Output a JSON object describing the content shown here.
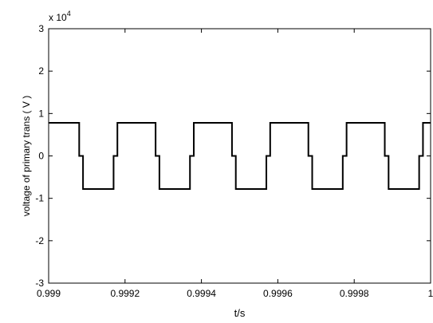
{
  "chart_data": {
    "type": "line",
    "title": "",
    "xlabel": "t/s",
    "ylabel": "voltage of primary trans ( V )",
    "y_exponent_label": {
      "base": "x 10",
      "power": "4"
    },
    "xlim": [
      0.999,
      1.0
    ],
    "ylim": [
      -3,
      3
    ],
    "x_ticks": [
      0.999,
      0.9992,
      0.9994,
      0.9996,
      0.9998,
      1.0
    ],
    "x_tick_labels": [
      "0.999",
      "0.9992",
      "0.9994",
      "0.9996",
      "0.9998",
      "1"
    ],
    "y_ticks": [
      -3,
      -2,
      -1,
      0,
      1,
      2,
      3
    ],
    "y_tick_labels": [
      "-3",
      "-2",
      "-1",
      "0",
      "1",
      "2",
      "3"
    ],
    "grid": false,
    "legend": "none",
    "line_color": "#000000",
    "series": [
      {
        "x": [
          0.999,
          0.99908,
          0.99908,
          0.99909,
          0.99909,
          0.99917,
          0.99917,
          0.99918,
          0.99918,
          0.99928,
          0.99928,
          0.99929,
          0.99929,
          0.99937,
          0.99937,
          0.99938,
          0.99938,
          0.99948,
          0.99948,
          0.99949,
          0.99949,
          0.99957,
          0.99957,
          0.99958,
          0.99958,
          0.99968,
          0.99968,
          0.99969,
          0.99969,
          0.99977,
          0.99977,
          0.99978,
          0.99978,
          0.99988,
          0.99988,
          0.99989,
          0.99989,
          0.99997,
          0.99997,
          0.99998,
          0.99998,
          1.0
        ],
        "y": [
          0.78,
          0.78,
          0.0,
          0.0,
          -0.78,
          -0.78,
          0.0,
          0.0,
          0.78,
          0.78,
          0.0,
          0.0,
          -0.78,
          -0.78,
          0.0,
          0.0,
          0.78,
          0.78,
          0.0,
          0.0,
          -0.78,
          -0.78,
          0.0,
          0.0,
          0.78,
          0.78,
          0.0,
          0.0,
          -0.78,
          -0.78,
          0.0,
          0.0,
          0.78,
          0.78,
          0.0,
          0.0,
          -0.78,
          -0.78,
          0.0,
          0.0,
          0.78,
          0.78
        ]
      }
    ]
  }
}
